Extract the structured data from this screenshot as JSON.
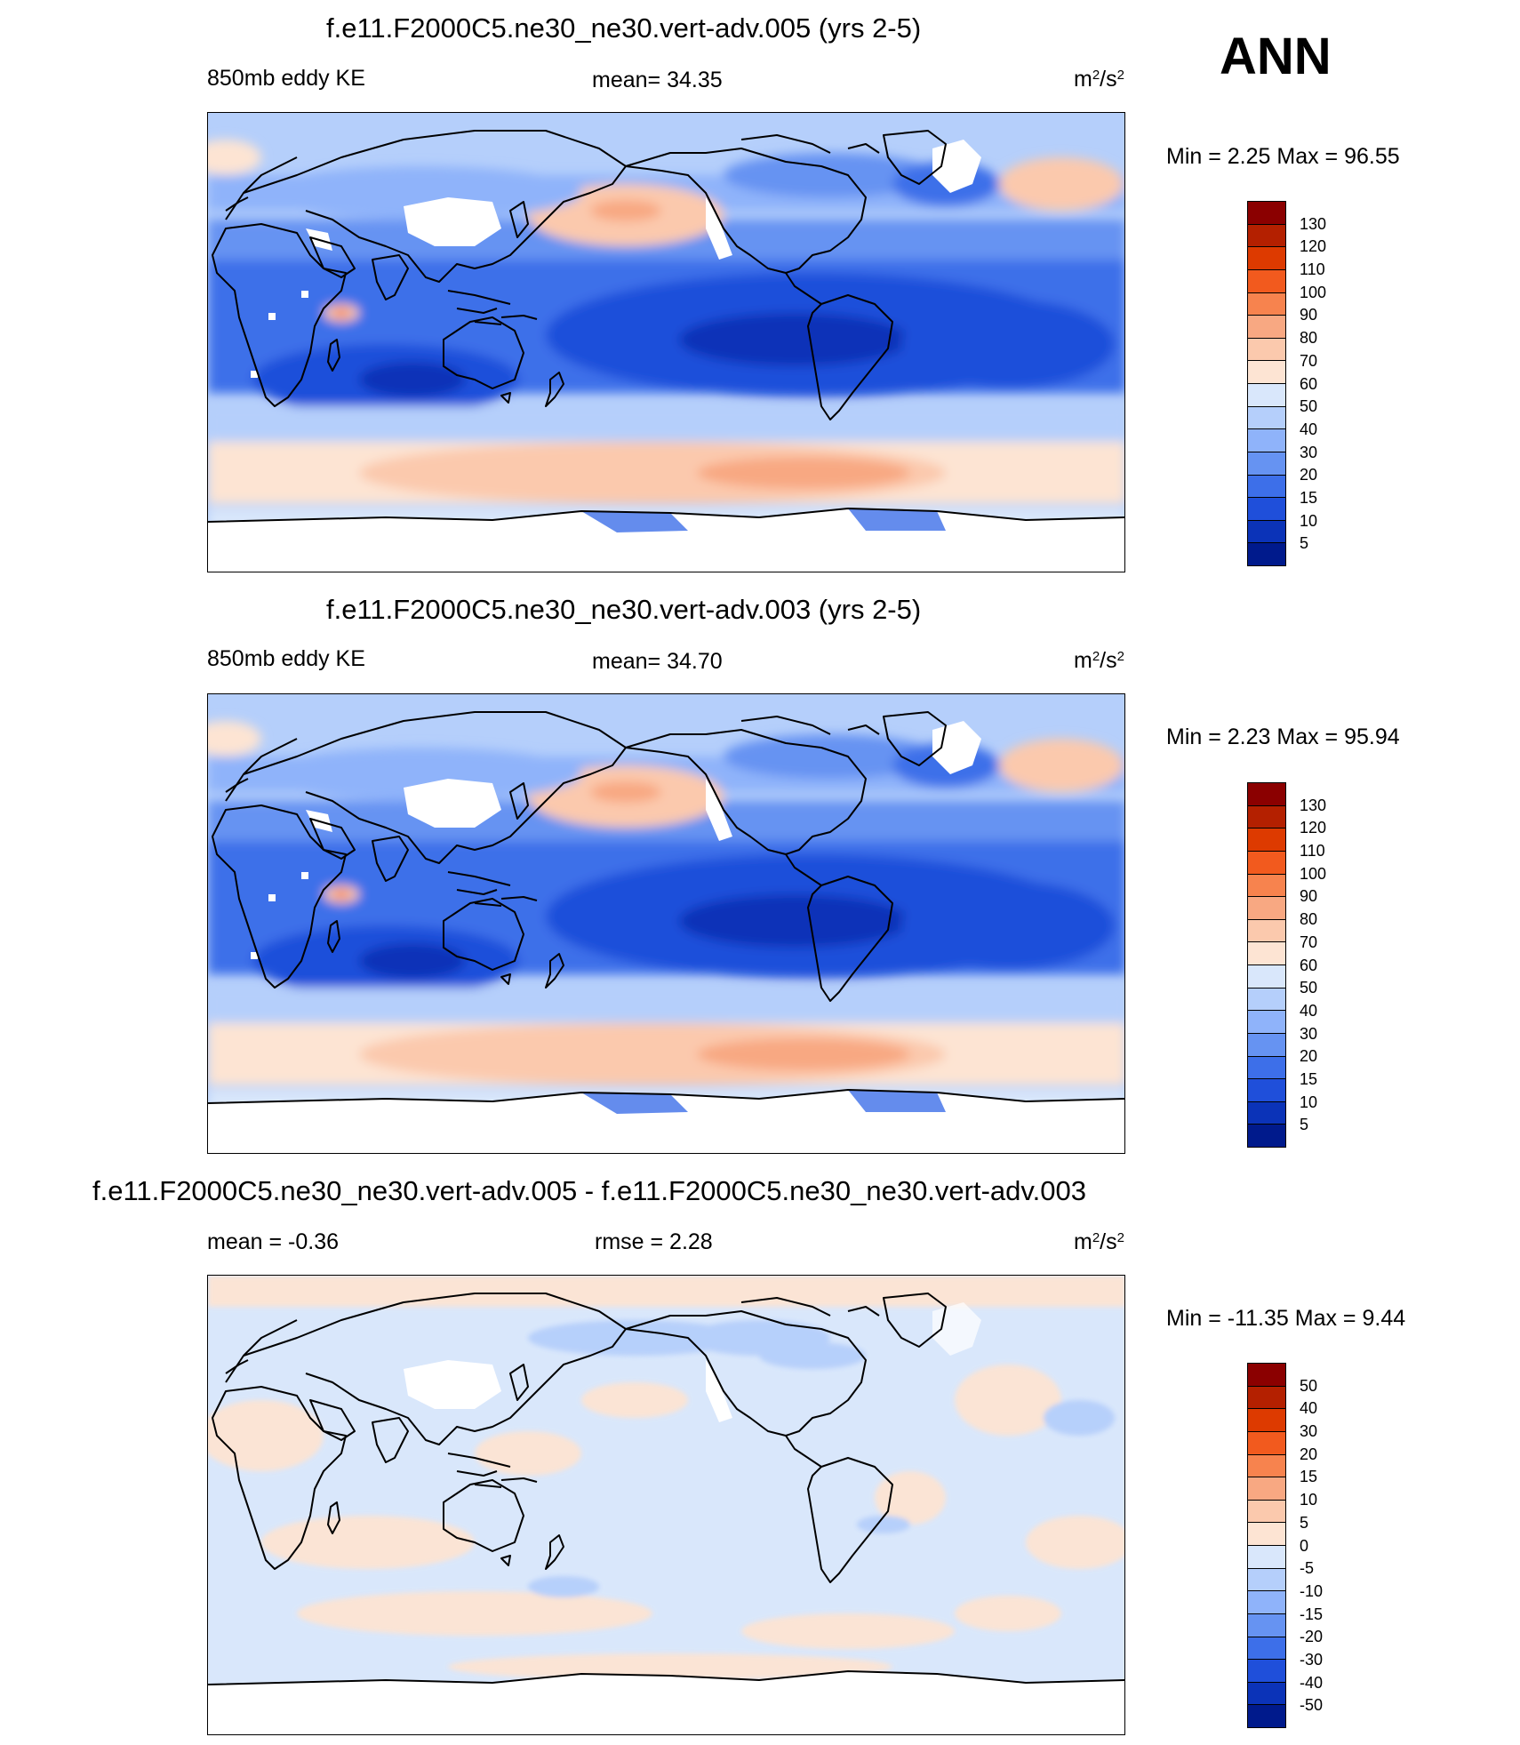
{
  "season": "ANN",
  "panels": [
    {
      "id": "top",
      "title": "f.e11.F2000C5.ne30_ne30.vert-adv.005 (yrs 2-5)",
      "left_label": "850mb eddy KE",
      "center_label": "mean=  34.35",
      "units_base": "m",
      "units_exp1": "2",
      "units_mid": "/s",
      "units_exp2": "2",
      "minmax": "Min =    2.25 Max =  96.55",
      "colorbar_labels": [
        "130",
        "120",
        "110",
        "100",
        "90",
        "80",
        "70",
        "60",
        "50",
        "40",
        "30",
        "20",
        "15",
        "10",
        "5"
      ],
      "colorbar_colors": [
        "#8b0000",
        "#b42000",
        "#dd3a00",
        "#f25a1e",
        "#f7834e",
        "#f8a882",
        "#fbc9ad",
        "#fde4d3",
        "#d9e7fb",
        "#b5cffb",
        "#8fb3fa",
        "#6693f2",
        "#3d6fe9",
        "#1f4fda",
        "#0b33b8",
        "#001a8c"
      ]
    },
    {
      "id": "middle",
      "title": "f.e11.F2000C5.ne30_ne30.vert-adv.003 (yrs 2-5)",
      "left_label": "850mb eddy KE",
      "center_label": "mean=  34.70",
      "units_base": "m",
      "units_exp1": "2",
      "units_mid": "/s",
      "units_exp2": "2",
      "minmax": "Min =    2.23 Max =  95.94",
      "colorbar_labels": [
        "130",
        "120",
        "110",
        "100",
        "90",
        "80",
        "70",
        "60",
        "50",
        "40",
        "30",
        "20",
        "15",
        "10",
        "5"
      ],
      "colorbar_colors": [
        "#8b0000",
        "#b42000",
        "#dd3a00",
        "#f25a1e",
        "#f7834e",
        "#f8a882",
        "#fbc9ad",
        "#fde4d3",
        "#d9e7fb",
        "#b5cffb",
        "#8fb3fa",
        "#6693f2",
        "#3d6fe9",
        "#1f4fda",
        "#0b33b8",
        "#001a8c"
      ]
    },
    {
      "id": "bottom",
      "title": "f.e11.F2000C5.ne30_ne30.vert-adv.005 - f.e11.F2000C5.ne30_ne30.vert-adv.003",
      "left_label": "mean =  -0.36",
      "center_label": "rmse =    2.28",
      "units_base": "m",
      "units_exp1": "2",
      "units_mid": "/s",
      "units_exp2": "2",
      "minmax": "Min = -11.35 Max =    9.44",
      "colorbar_labels": [
        "50",
        "40",
        "30",
        "20",
        "15",
        "10",
        "5",
        "0",
        "-5",
        "-10",
        "-15",
        "-20",
        "-30",
        "-40",
        "-50"
      ],
      "colorbar_colors": [
        "#8b0000",
        "#b42000",
        "#dd3a00",
        "#f25a1e",
        "#f7834e",
        "#f8a882",
        "#fbc9ad",
        "#fde4d3",
        "#d9e7fb",
        "#b5cffb",
        "#8fb3fa",
        "#6693f2",
        "#3d6fe9",
        "#1f4fda",
        "#0b33b8",
        "#001a8c"
      ]
    }
  ]
}
